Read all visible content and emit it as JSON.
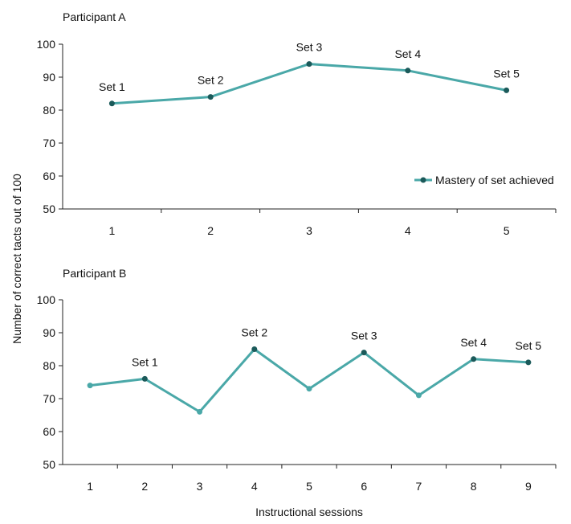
{
  "chart_data": [
    {
      "type": "line",
      "panel_title": "Participant A",
      "x": [
        1,
        2,
        3,
        4,
        5
      ],
      "series": [
        {
          "name": "Mastery of set achieved",
          "values": [
            82,
            84,
            94,
            92,
            86
          ],
          "mastery": [
            true,
            true,
            true,
            true,
            true
          ]
        }
      ],
      "point_labels": [
        "Set 1",
        "Set 2",
        "Set 3",
        "Set 4",
        "Set 5"
      ],
      "xticks": [
        "1",
        "2",
        "3",
        "4",
        "5"
      ],
      "yticks": [
        "50",
        "60",
        "70",
        "80",
        "90",
        "100"
      ],
      "xlim": [
        0.5,
        5.5
      ],
      "ylim": [
        50,
        100
      ],
      "legend_position": "bottom-right",
      "grid": false
    },
    {
      "type": "line",
      "panel_title": "Participant B",
      "x": [
        1,
        2,
        3,
        4,
        5,
        6,
        7,
        8,
        9
      ],
      "series": [
        {
          "name": "",
          "values": [
            74,
            76,
            66,
            85,
            73,
            84,
            71,
            82,
            81
          ],
          "mastery": [
            false,
            true,
            false,
            true,
            false,
            true,
            false,
            true,
            true
          ]
        }
      ],
      "point_labels": [
        "",
        "Set 1",
        "",
        "Set 2",
        "",
        "Set 3",
        "",
        "Set 4",
        "Set 5"
      ],
      "xticks": [
        "1",
        "2",
        "3",
        "4",
        "5",
        "6",
        "7",
        "8",
        "9"
      ],
      "yticks": [
        "50",
        "60",
        "70",
        "80",
        "90",
        "100"
      ],
      "xlim": [
        0.5,
        9.5
      ],
      "ylim": [
        50,
        100
      ],
      "grid": false
    }
  ],
  "ylabel": "Number of correct tacts out of 100",
  "xlabel": "Instructional sessions",
  "colors": {
    "line": "#4aa8a8",
    "mastery_marker": "#1b5a5a",
    "axis": "#222222"
  }
}
